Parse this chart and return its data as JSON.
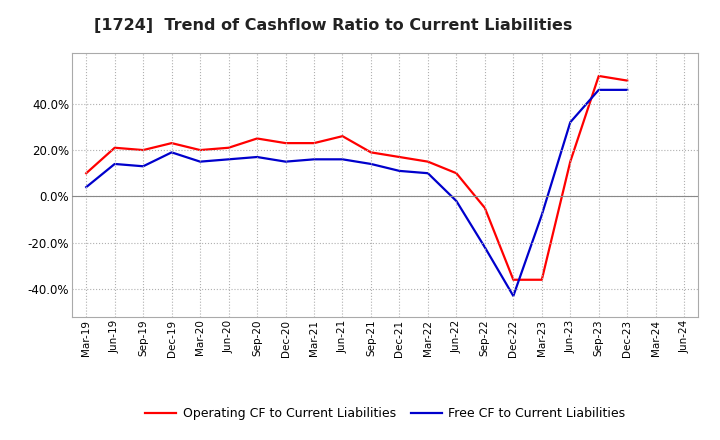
{
  "title": "[1724]  Trend of Cashflow Ratio to Current Liabilities",
  "x_labels": [
    "Mar-19",
    "Jun-19",
    "Sep-19",
    "Dec-19",
    "Mar-20",
    "Jun-20",
    "Sep-20",
    "Dec-20",
    "Mar-21",
    "Jun-21",
    "Sep-21",
    "Dec-21",
    "Mar-22",
    "Jun-22",
    "Sep-22",
    "Dec-22",
    "Mar-23",
    "Jun-23",
    "Sep-23",
    "Dec-23",
    "Mar-24",
    "Jun-24"
  ],
  "operating_cf": [
    0.1,
    0.21,
    0.2,
    0.23,
    0.2,
    0.21,
    0.25,
    0.23,
    0.23,
    0.26,
    0.19,
    0.17,
    0.15,
    0.1,
    -0.05,
    -0.36,
    -0.36,
    0.15,
    0.52,
    0.5,
    null,
    null
  ],
  "free_cf": [
    0.04,
    0.14,
    0.13,
    0.19,
    0.15,
    0.16,
    0.17,
    0.15,
    0.16,
    0.16,
    0.14,
    0.11,
    0.1,
    -0.02,
    -0.22,
    -0.43,
    -0.08,
    0.32,
    0.46,
    0.46,
    null,
    null
  ],
  "operating_color": "#ff0000",
  "free_color": "#0000cc",
  "background_color": "#ffffff",
  "grid_color": "#b0b0b0",
  "ylim": [
    -0.52,
    0.62
  ],
  "yticks": [
    -0.4,
    -0.2,
    0.0,
    0.2,
    0.4
  ],
  "legend_labels": [
    "Operating CF to Current Liabilities",
    "Free CF to Current Liabilities"
  ]
}
